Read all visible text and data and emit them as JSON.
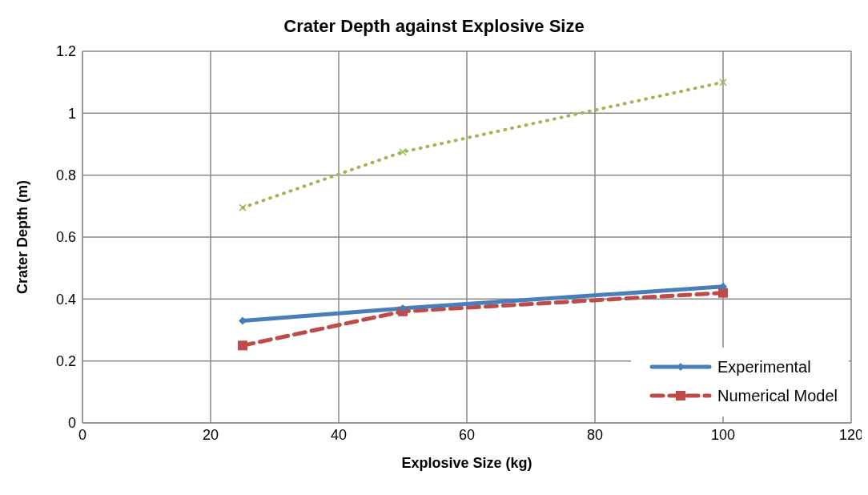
{
  "chart_data": {
    "type": "line",
    "title": "Crater Depth against Explosive Size",
    "xlabel": "Explosive Size (kg)",
    "ylabel": "Crater Depth (m)",
    "x": [
      25,
      50,
      100
    ],
    "series": [
      {
        "name": "Experimental",
        "color": "#4a7ebb",
        "values": [
          0.33,
          0.37,
          0.44
        ],
        "marker": "diamond",
        "line_style": "solid"
      },
      {
        "name": "Numerical Model",
        "color": "#be4b48",
        "values": [
          0.25,
          0.36,
          0.42
        ],
        "marker": "square",
        "line_style": "dashed"
      },
      {
        "color": "#98b954",
        "values": [
          0.695,
          0.875,
          1.1
        ],
        "marker": "cross",
        "line_style": "dotted"
      }
    ],
    "xlim": [
      0,
      120
    ],
    "xticks": [
      0,
      20,
      40,
      60,
      80,
      100,
      120
    ],
    "ylim": [
      0,
      1.2
    ],
    "yticks": [
      0,
      0.2,
      0.4,
      0.6,
      0.8,
      1,
      1.2
    ],
    "grid": true,
    "legend": "bottom right"
  }
}
